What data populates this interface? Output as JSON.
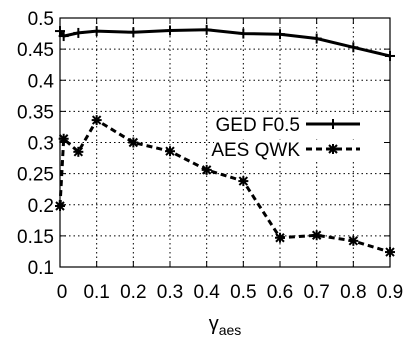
{
  "chart_data": {
    "type": "line",
    "title": "",
    "xlabel": "γ",
    "xlabel_subscript": "aes",
    "ylabel": "",
    "xlim": [
      0,
      0.9
    ],
    "ylim": [
      0.1,
      0.5
    ],
    "x_ticks": [
      0,
      0.1,
      0.2,
      0.3,
      0.4,
      0.5,
      0.6,
      0.7,
      0.8,
      0.9
    ],
    "x_tick_labels": [
      "0",
      "0.1",
      "0.2",
      "0.3",
      "0.4",
      "0.5",
      "0.6",
      "0.7",
      "0.8",
      "0.9"
    ],
    "y_ticks": [
      0.1,
      0.15,
      0.2,
      0.25,
      0.3,
      0.35,
      0.4,
      0.45,
      0.5
    ],
    "y_tick_labels": [
      "0.1",
      "0.15",
      "0.2",
      "0.25",
      "0.3",
      "0.35",
      "0.4",
      "0.45",
      "0.5"
    ],
    "grid": true,
    "legend_position": "center-right",
    "series": [
      {
        "name": "GED F0.5",
        "style": "solid",
        "marker": "plus",
        "color": "#000000",
        "x": [
          0,
          0.01,
          0.05,
          0.1,
          0.2,
          0.3,
          0.4,
          0.5,
          0.6,
          0.7,
          0.8,
          0.9
        ],
        "y": [
          0.479,
          0.471,
          0.476,
          0.479,
          0.477,
          0.48,
          0.481,
          0.475,
          0.474,
          0.467,
          0.453,
          0.439
        ]
      },
      {
        "name": "AES QWK",
        "style": "dashed",
        "marker": "star",
        "color": "#000000",
        "x": [
          0,
          0.01,
          0.05,
          0.1,
          0.2,
          0.3,
          0.4,
          0.5,
          0.6,
          0.7,
          0.8,
          0.9
        ],
        "y": [
          0.198,
          0.306,
          0.285,
          0.336,
          0.3,
          0.286,
          0.256,
          0.238,
          0.147,
          0.151,
          0.142,
          0.124
        ]
      }
    ]
  }
}
